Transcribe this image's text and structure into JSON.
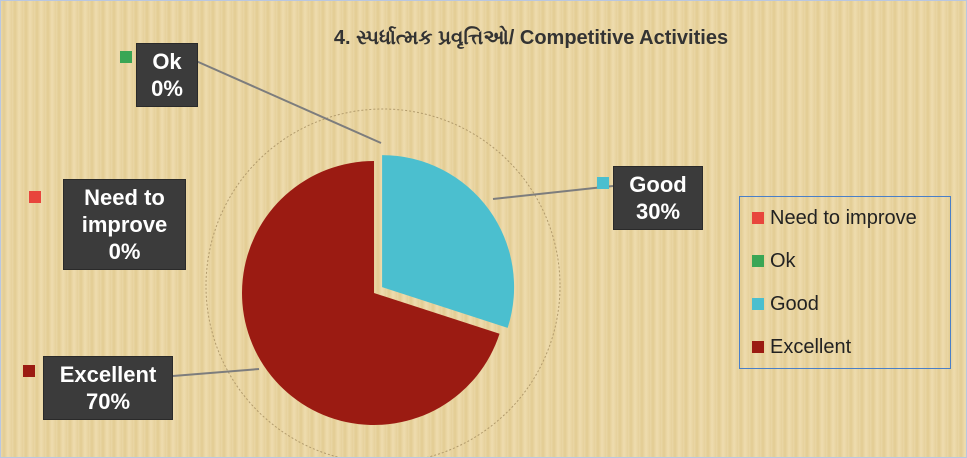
{
  "chart_data": {
    "type": "pie",
    "title": "4. સ્પર્ધાત્મક પ્રવૃત્તિઓ/ Competitive Activities",
    "categories": [
      "Need to improve",
      "Ok",
      "Good",
      "Excellent"
    ],
    "values": [
      0,
      0,
      30,
      70
    ],
    "value_labels": [
      "0%",
      "0%",
      "30%",
      "70%"
    ],
    "colors": [
      "#e8453c",
      "#3aa655",
      "#4bbfcf",
      "#9b1b12"
    ],
    "legend": "right"
  }
}
